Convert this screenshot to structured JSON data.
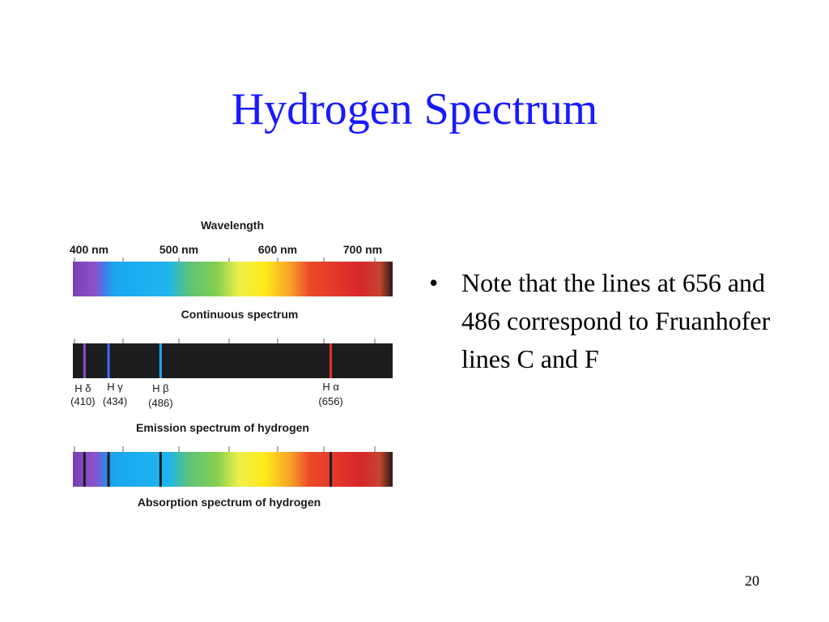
{
  "slide": {
    "title": "Hydrogen Spectrum",
    "page_number": "20"
  },
  "figure": {
    "heading": "Wavelength",
    "tick_labels": [
      "400 nm",
      "500 nm",
      "600 nm",
      "700 nm"
    ],
    "continuous_caption": "Continuous spectrum",
    "emission_caption": "Emission spectrum of hydrogen",
    "absorption_caption": "Absorption spectrum of hydrogen",
    "lines": [
      {
        "name": "H δ",
        "wavelength": "(410)",
        "nm": 410,
        "color": "#8a4fd0"
      },
      {
        "name": "H γ",
        "wavelength": "(434)",
        "nm": 434,
        "color": "#3d6cff"
      },
      {
        "name": "H β",
        "wavelength": "(486)",
        "nm": 486,
        "color": "#1ea8ff"
      },
      {
        "name": "H α",
        "wavelength": "(656)",
        "nm": 656,
        "color": "#e8322c"
      }
    ]
  },
  "bullets": [
    "Note that the lines at 656 and 486 correspond to Fruanhofer lines C and F"
  ]
}
